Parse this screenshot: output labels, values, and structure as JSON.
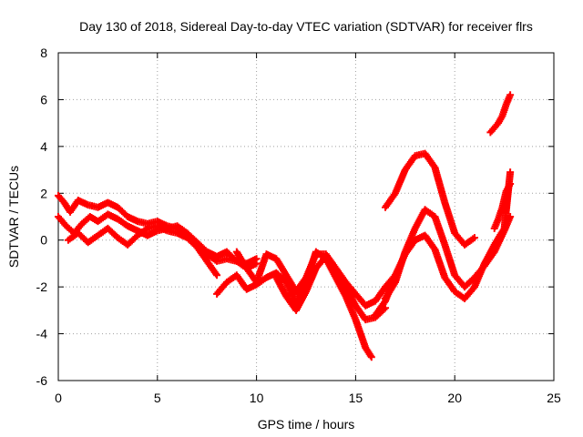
{
  "chart_data": {
    "type": "scatter",
    "title": "Day 130 of 2018, Sidereal Day-to-day VTEC variation (SDTVAR) for receiver flrs",
    "xlabel": "GPS time / hours",
    "ylabel": "SDTVAR / TECUs",
    "xlim": [
      0,
      25
    ],
    "ylim": [
      -6,
      8
    ],
    "xticks": [
      0,
      5,
      10,
      15,
      20,
      25
    ],
    "yticks": [
      -6,
      -4,
      -2,
      0,
      2,
      4,
      6,
      8
    ],
    "grid": true,
    "marker": "plus",
    "color": "#ff0000",
    "series": [
      {
        "name": "trace-1",
        "x": [
          0.0,
          0.3,
          0.6,
          1.0,
          1.5,
          2.0,
          2.5,
          3.0,
          3.5,
          4.0,
          4.5,
          5.0,
          5.5,
          6.0,
          6.5,
          7.0,
          7.5,
          8.0,
          8.5,
          9.0,
          9.5,
          10.0
        ],
        "y": [
          1.9,
          1.6,
          1.2,
          1.7,
          1.5,
          1.4,
          1.6,
          1.4,
          1.0,
          0.8,
          0.7,
          0.8,
          0.6,
          0.5,
          0.2,
          -0.2,
          -0.6,
          -0.9,
          -0.8,
          -0.9,
          -1.0,
          -0.8
        ]
      },
      {
        "name": "trace-2",
        "x": [
          0.0,
          0.4,
          0.8,
          1.2,
          1.6,
          2.0,
          2.5,
          3.0,
          3.5,
          4.0,
          4.5,
          5.0,
          5.5,
          6.0,
          6.5,
          7.0,
          7.5,
          8.0,
          8.5,
          9.0,
          9.5,
          10.0
        ],
        "y": [
          1.0,
          0.6,
          0.3,
          0.7,
          1.0,
          0.8,
          1.1,
          0.9,
          0.6,
          0.4,
          0.2,
          0.4,
          0.5,
          0.6,
          0.3,
          -0.1,
          -0.5,
          -0.7,
          -0.5,
          -0.9,
          -1.2,
          -1.0
        ]
      },
      {
        "name": "trace-3",
        "x": [
          0.5,
          1.0,
          1.5,
          2.0,
          2.5,
          3.0,
          3.5,
          4.0,
          4.5,
          5.0,
          5.5,
          6.0,
          6.5,
          7.0,
          7.5,
          8.0
        ],
        "y": [
          0.0,
          0.3,
          -0.1,
          0.2,
          0.5,
          0.1,
          -0.2,
          0.2,
          0.5,
          0.6,
          0.4,
          0.3,
          0.1,
          -0.3,
          -0.9,
          -1.5
        ]
      },
      {
        "name": "trace-4",
        "x": [
          8.0,
          8.5,
          9.0,
          9.5,
          10.0,
          10.5,
          11.0,
          11.5,
          12.0,
          12.5,
          13.0,
          13.5,
          14.0,
          14.5,
          15.0,
          15.5,
          15.8
        ],
        "y": [
          -2.3,
          -1.8,
          -1.5,
          -2.1,
          -1.9,
          -1.6,
          -1.4,
          -1.8,
          -2.7,
          -1.8,
          -0.5,
          -0.8,
          -1.6,
          -2.4,
          -3.4,
          -4.6,
          -5.0
        ]
      },
      {
        "name": "trace-5",
        "x": [
          9.0,
          9.5,
          10.0,
          10.5,
          11.0,
          11.5,
          12.0,
          12.5,
          13.0,
          13.5,
          14.0,
          14.5,
          15.0,
          15.5,
          16.0,
          16.5,
          17.0
        ],
        "y": [
          -0.5,
          -1.2,
          -1.8,
          -0.6,
          -0.8,
          -1.5,
          -2.2,
          -1.6,
          -0.6,
          -0.6,
          -1.2,
          -1.8,
          -2.3,
          -2.8,
          -2.6,
          -2.0,
          -1.5
        ]
      },
      {
        "name": "trace-6",
        "x": [
          11.0,
          11.5,
          12.0,
          12.5,
          13.0,
          13.5,
          14.0,
          14.5,
          15.0,
          15.5,
          16.0,
          16.5
        ],
        "y": [
          -1.6,
          -2.4,
          -3.0,
          -2.2,
          -1.2,
          -0.7,
          -1.3,
          -2.0,
          -2.8,
          -3.4,
          -3.3,
          -2.9
        ]
      },
      {
        "name": "trace-7",
        "x": [
          16.5,
          17.0,
          17.5,
          18.0,
          18.5,
          19.0,
          19.5,
          20.0,
          20.5,
          21.0
        ],
        "y": [
          1.4,
          2.0,
          3.0,
          3.6,
          3.7,
          3.1,
          1.6,
          0.3,
          -0.2,
          0.1
        ]
      },
      {
        "name": "trace-8",
        "x": [
          16.5,
          17.0,
          17.5,
          18.0,
          18.5,
          19.0,
          19.5,
          20.0,
          20.5,
          21.0,
          21.5,
          22.0,
          22.5,
          22.8
        ],
        "y": [
          -2.5,
          -1.8,
          -0.5,
          0.5,
          1.3,
          1.0,
          -0.2,
          -1.5,
          -2.0,
          -1.6,
          -1.1,
          -0.5,
          0.4,
          1.0
        ]
      },
      {
        "name": "trace-9",
        "x": [
          16.0,
          16.5,
          17.0,
          17.5,
          18.0,
          18.5,
          19.0,
          19.5,
          20.0,
          20.5,
          21.0,
          21.5,
          22.0,
          22.5,
          22.8
        ],
        "y": [
          -3.2,
          -2.6,
          -1.5,
          -0.6,
          0.0,
          0.2,
          -0.4,
          -1.6,
          -2.2,
          -2.5,
          -2.0,
          -1.0,
          -0.2,
          0.5,
          2.9
        ]
      },
      {
        "name": "trace-10",
        "x": [
          21.8,
          22.0,
          22.2,
          22.4,
          22.6,
          22.8
        ],
        "y": [
          4.6,
          4.8,
          5.0,
          5.3,
          5.8,
          6.2
        ]
      },
      {
        "name": "trace-11",
        "x": [
          22.0,
          22.2,
          22.4,
          22.6,
          22.8
        ],
        "y": [
          0.5,
          0.9,
          1.4,
          2.1,
          2.4
        ]
      }
    ]
  }
}
